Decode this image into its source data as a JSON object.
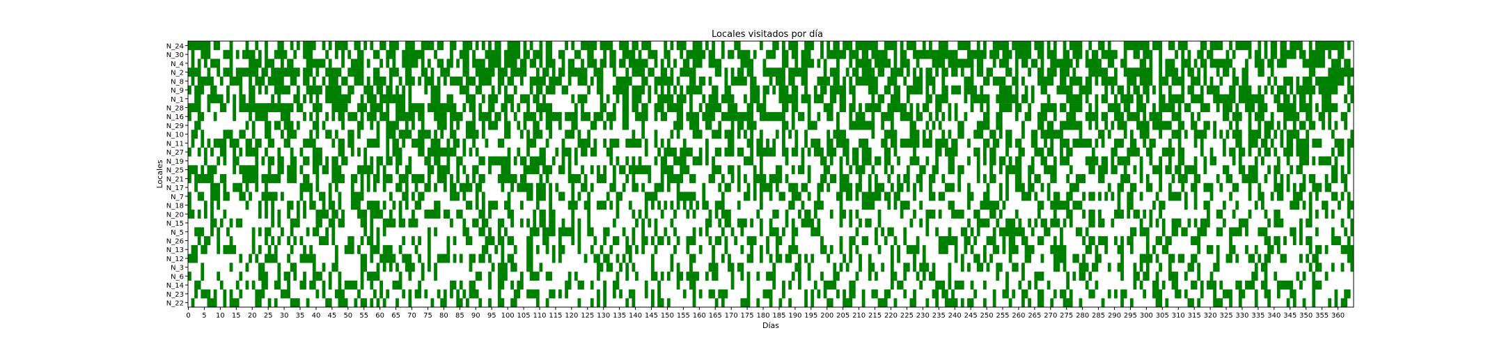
{
  "chart_data": {
    "type": "heatmap",
    "title": "Locales visitados por día",
    "xlabel": "Días",
    "ylabel": "Locales",
    "xlim": [
      0,
      365
    ],
    "x_tick_step": 5,
    "num_days": 365,
    "rows": [
      "N_24",
      "N_30",
      "N_4",
      "N_2",
      "N_8",
      "N_9",
      "N_1",
      "N_28",
      "N_16",
      "N_29",
      "N_10",
      "N_11",
      "N_27",
      "N_19",
      "N_25",
      "N_21",
      "N_17",
      "N_7",
      "N_18",
      "N_20",
      "N_15",
      "N_5",
      "N_26",
      "N_13",
      "N_12",
      "N_3",
      "N_6",
      "N_14",
      "N_23",
      "N_22"
    ],
    "visit_rate": [
      0.62,
      0.6,
      0.58,
      0.58,
      0.57,
      0.57,
      0.56,
      0.56,
      0.55,
      0.46,
      0.45,
      0.45,
      0.44,
      0.44,
      0.43,
      0.43,
      0.42,
      0.42,
      0.37,
      0.36,
      0.36,
      0.35,
      0.35,
      0.34,
      0.34,
      0.33,
      0.33,
      0.32,
      0.32,
      0.31
    ],
    "legend": "none",
    "grid": false,
    "colors": {
      "visited": "#008000",
      "not_visited": "#ffffff"
    }
  }
}
